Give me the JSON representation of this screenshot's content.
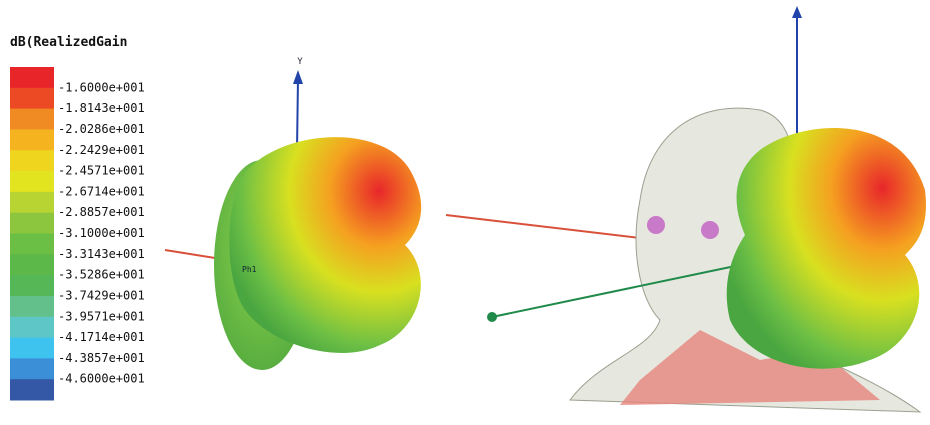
{
  "legend": {
    "title": "dB(RealizedGain",
    "labels": [
      "-1.6000e+001",
      "-1.8143e+001",
      "-2.0286e+001",
      "-2.2429e+001",
      "-2.4571e+001",
      "-2.6714e+001",
      "-2.8857e+001",
      "-3.1000e+001",
      "-3.3143e+001",
      "-3.5286e+001",
      "-3.7429e+001",
      "-3.9571e+001",
      "-4.1714e+001",
      "-4.3857e+001",
      "-4.6000e+001"
    ],
    "colors": [
      "#e8262a",
      "#ec4a25",
      "#f08a22",
      "#f5b320",
      "#f0d51e",
      "#e2e420",
      "#b8d432",
      "#8cc63f",
      "#6cbf45",
      "#5cb848",
      "#56b757",
      "#64c08a",
      "#5fc6c8",
      "#3ec3ee",
      "#3b8fd6",
      "#3458a6"
    ]
  },
  "scene": {
    "axis_label": "Y",
    "port_label": "Ph1"
  }
}
